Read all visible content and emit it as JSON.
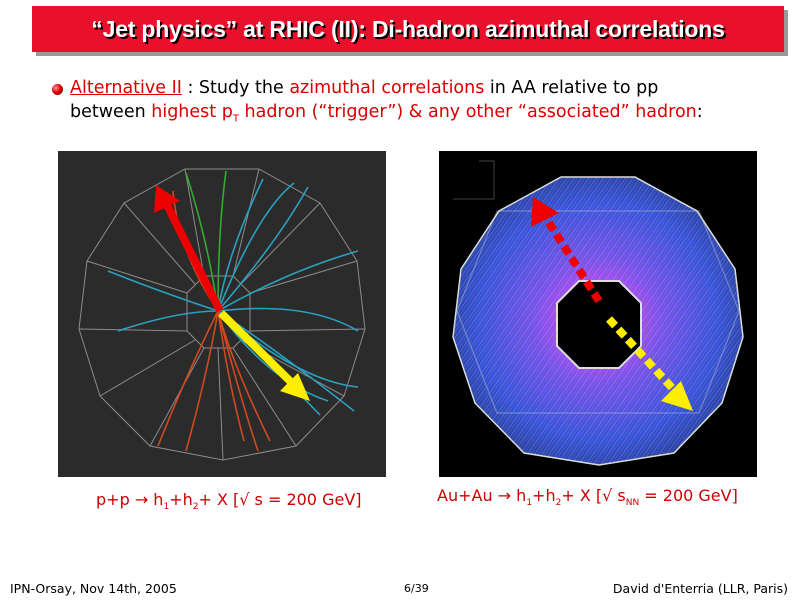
{
  "slide": {
    "title": "“Jet physics” at RHIC (II): Di-hadron azimuthal correlations",
    "bullet": {
      "link": "Alternative II",
      "t1": " : Study the ",
      "r1": "azimuthal correlations",
      "t2": " in AA relative to pp",
      "t3": "between ",
      "r2": "highest p",
      "r2sub": "T",
      "r3": " hadron (“trigger”) & any other “associated” hadron",
      "t4": ":"
    },
    "captions": {
      "pp": {
        "a": "p+p ",
        "arrow": "→",
        "b": " h",
        "s1": "1",
        "c": "+h",
        "s2": "2",
        "d": "+ X  [√ s = 200 GeV]"
      },
      "auau": {
        "a": "Au+Au ",
        "arrow": "→",
        "b": " h",
        "s1": "1",
        "c": "+h",
        "s2": "2",
        "d": "+ X [√ s",
        "s3": "NN",
        "e": " = 200 GeV]"
      }
    },
    "footer": {
      "left": "IPN-Orsay, Nov 14th, 2005",
      "center": "6/39",
      "right": "David d'Enterria (LLR, Paris)"
    },
    "colors": {
      "title_bg": "#e8102a",
      "highlight": "#d80000",
      "trigger_arrow": "#ee0000",
      "associated_arrow": "#ffee00"
    }
  }
}
